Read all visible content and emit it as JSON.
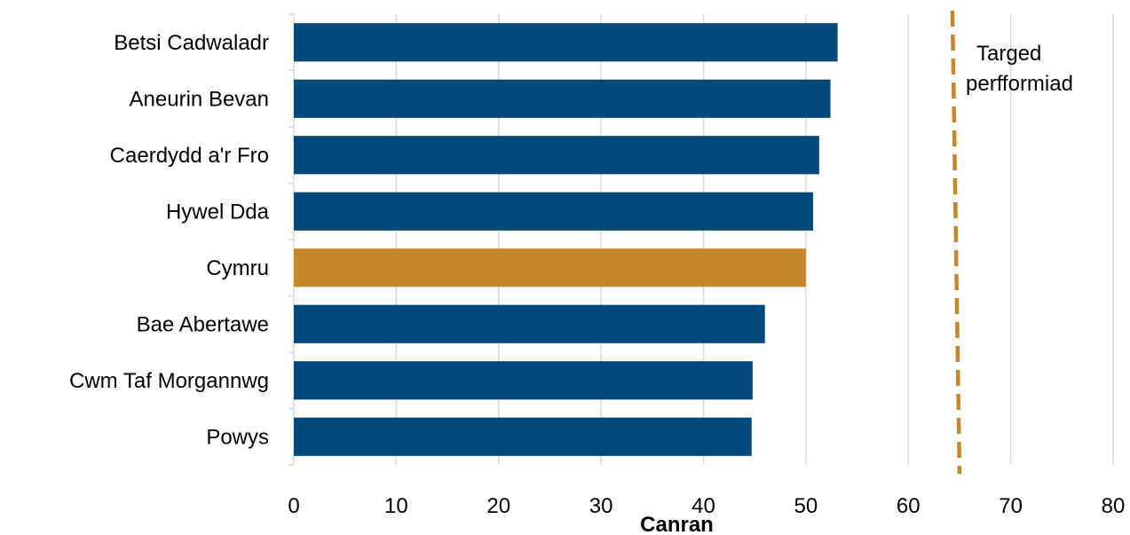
{
  "chart_data": {
    "type": "bar",
    "orientation": "horizontal",
    "categories": [
      "Betsi Cadwaladr",
      "Aneurin Bevan",
      "Caerdydd a'r Fro",
      "Hywel Dda",
      "Cymru",
      "Bae Abertawe",
      "Cwm Taf Morgannwg",
      "Powys"
    ],
    "values": [
      53.1,
      52.4,
      51.3,
      50.7,
      50.0,
      46.0,
      44.8,
      44.7
    ],
    "highlight_category": "Cymru",
    "xlabel": "Canran",
    "ylabel": "",
    "xlim": [
      0,
      80
    ],
    "xticks": [
      0,
      10,
      20,
      30,
      40,
      50,
      60,
      70,
      80
    ],
    "grid": true,
    "target": {
      "value": 65,
      "label_line1": "Targed",
      "label_line2": "perfformiad"
    },
    "colors": {
      "bar": "#024a7c",
      "highlight": "#c8862a",
      "target": "#c8862a",
      "grid": "#d9d9d9"
    }
  }
}
